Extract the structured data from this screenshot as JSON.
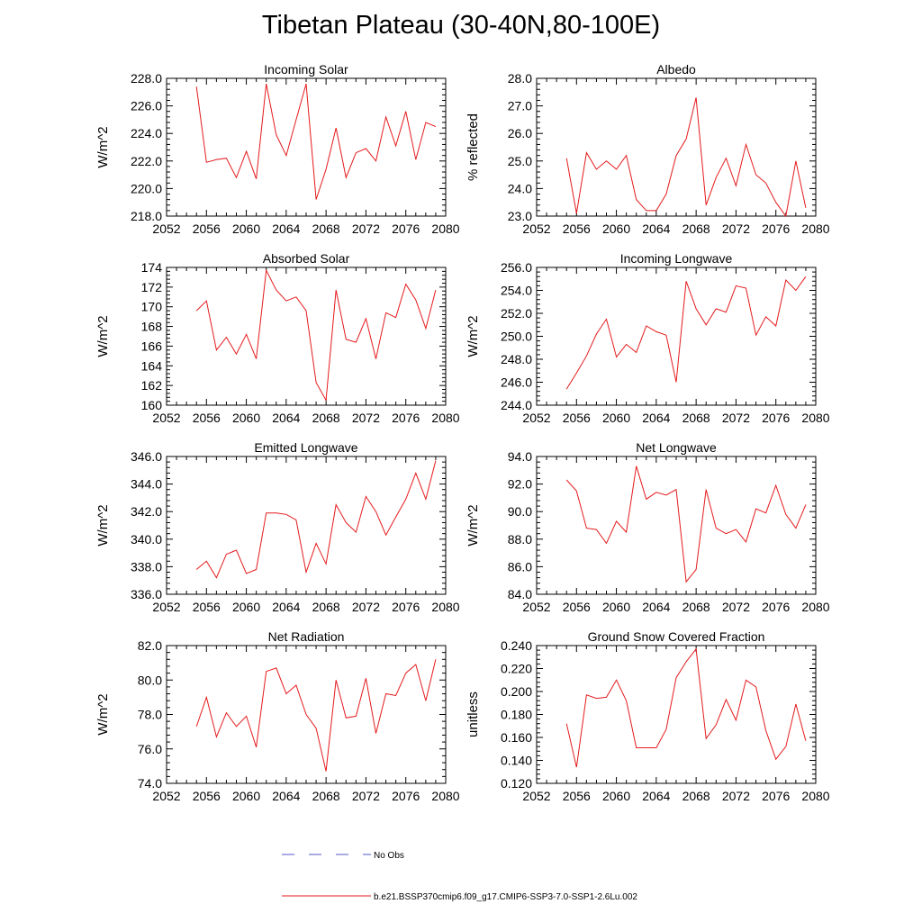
{
  "title": "Tibetan Plateau (30-40N,80-100E)",
  "legend": [
    {
      "label": "No Obs",
      "color": "#5555cc",
      "style": "dashed"
    },
    {
      "label": "b.e21.BSSP370cmip6.f09_g17.CMIP6-SSP3-7.0-SSP1-2.6Lu.002",
      "color": "#e41a1c",
      "style": "solid"
    }
  ],
  "chart_data": [
    {
      "type": "line",
      "title": "Incoming Solar",
      "ylabel": "W/m^2",
      "xlim": [
        2052,
        2080
      ],
      "ylim": [
        218.0,
        228.0
      ],
      "x_ticks": [
        2052,
        2056,
        2060,
        2064,
        2068,
        2072,
        2076,
        2080
      ],
      "y_ticks": [
        "218.0",
        "220.0",
        "222.0",
        "224.0",
        "226.0",
        "228.0"
      ],
      "series": [
        {
          "name": "b.e21.BSSP370cmip6.f09_g17.CMIP6-SSP3-7.0-SSP1-2.6Lu.002",
          "color": "#e41a1c",
          "x": [
            2055,
            2056,
            2057,
            2058,
            2059,
            2060,
            2061,
            2062,
            2063,
            2064,
            2065,
            2066,
            2067,
            2068,
            2069,
            2070,
            2071,
            2072,
            2073,
            2074,
            2075,
            2076,
            2077,
            2078,
            2079
          ],
          "y": [
            227.4,
            221.9,
            222.1,
            222.2,
            220.8,
            222.7,
            220.7,
            227.6,
            223.9,
            222.4,
            225.0,
            227.6,
            219.2,
            221.4,
            224.4,
            220.8,
            222.6,
            222.9,
            222.0,
            225.2,
            223.1,
            225.6,
            222.1,
            224.8,
            224.5
          ]
        }
      ]
    },
    {
      "type": "line",
      "title": "Albedo",
      "ylabel": "% reflected",
      "xlim": [
        2052,
        2080
      ],
      "ylim": [
        23.0,
        28.0
      ],
      "x_ticks": [
        2052,
        2056,
        2060,
        2064,
        2068,
        2072,
        2076,
        2080
      ],
      "y_ticks": [
        "23.0",
        "24.0",
        "25.0",
        "26.0",
        "27.0",
        "28.0"
      ],
      "series": [
        {
          "name": "b.e21.BSSP370cmip6.f09_g17.CMIP6-SSP3-7.0-SSP1-2.6Lu.002",
          "color": "#e41a1c",
          "x": [
            2055,
            2056,
            2057,
            2058,
            2059,
            2060,
            2061,
            2062,
            2063,
            2064,
            2065,
            2066,
            2067,
            2068,
            2069,
            2070,
            2071,
            2072,
            2073,
            2074,
            2075,
            2076,
            2077,
            2078,
            2079
          ],
          "y": [
            25.1,
            23.1,
            25.3,
            24.7,
            25.0,
            24.7,
            25.2,
            23.6,
            23.2,
            23.2,
            23.8,
            25.2,
            25.8,
            27.3,
            23.4,
            24.4,
            25.1,
            24.1,
            25.6,
            24.5,
            24.2,
            23.5,
            23.0,
            25.0,
            23.3
          ]
        }
      ]
    },
    {
      "type": "line",
      "title": "Absorbed Solar",
      "ylabel": "W/m^2",
      "xlim": [
        2052,
        2080
      ],
      "ylim": [
        160,
        174
      ],
      "x_ticks": [
        2052,
        2056,
        2060,
        2064,
        2068,
        2072,
        2076,
        2080
      ],
      "y_ticks": [
        "160",
        "162",
        "164",
        "166",
        "168",
        "170",
        "172",
        "174"
      ],
      "series": [
        {
          "name": "b.e21.BSSP370cmip6.f09_g17.CMIP6-SSP3-7.0-SSP1-2.6Lu.002",
          "color": "#e41a1c",
          "x": [
            2055,
            2056,
            2057,
            2058,
            2059,
            2060,
            2061,
            2062,
            2063,
            2064,
            2065,
            2066,
            2067,
            2068,
            2069,
            2070,
            2071,
            2072,
            2073,
            2074,
            2075,
            2076,
            2077,
            2078,
            2079
          ],
          "y": [
            169.6,
            170.6,
            165.6,
            166.9,
            165.2,
            167.2,
            164.7,
            173.7,
            171.7,
            170.6,
            171.0,
            169.6,
            162.3,
            160.5,
            171.7,
            166.7,
            166.4,
            168.8,
            164.7,
            169.4,
            168.9,
            172.3,
            170.7,
            167.8,
            171.7
          ]
        }
      ]
    },
    {
      "type": "line",
      "title": "Incoming Longwave",
      "ylabel": "W/m^2",
      "xlim": [
        2052,
        2080
      ],
      "ylim": [
        244.0,
        256.0
      ],
      "x_ticks": [
        2052,
        2056,
        2060,
        2064,
        2068,
        2072,
        2076,
        2080
      ],
      "y_ticks": [
        "244.0",
        "246.0",
        "248.0",
        "250.0",
        "252.0",
        "254.0",
        "256.0"
      ],
      "series": [
        {
          "name": "b.e21.BSSP370cmip6.f09_g17.CMIP6-SSP3-7.0-SSP1-2.6Lu.002",
          "color": "#e41a1c",
          "x": [
            2055,
            2056,
            2057,
            2058,
            2059,
            2060,
            2061,
            2062,
            2063,
            2064,
            2065,
            2066,
            2067,
            2068,
            2069,
            2070,
            2071,
            2072,
            2073,
            2074,
            2075,
            2076,
            2077,
            2078,
            2079
          ],
          "y": [
            245.4,
            246.8,
            248.3,
            250.2,
            251.5,
            248.2,
            249.3,
            248.6,
            250.9,
            250.4,
            250.1,
            246.0,
            254.8,
            252.4,
            251.0,
            252.4,
            252.1,
            254.4,
            254.2,
            250.1,
            251.7,
            250.9,
            254.9,
            254.0,
            255.2
          ]
        }
      ]
    },
    {
      "type": "line",
      "title": "Emitted Longwave",
      "ylabel": "W/m^2",
      "xlim": [
        2052,
        2080
      ],
      "ylim": [
        336.0,
        346.0
      ],
      "x_ticks": [
        2052,
        2056,
        2060,
        2064,
        2068,
        2072,
        2076,
        2080
      ],
      "y_ticks": [
        "336.0",
        "338.0",
        "340.0",
        "342.0",
        "344.0",
        "346.0"
      ],
      "series": [
        {
          "name": "b.e21.BSSP370cmip6.f09_g17.CMIP6-SSP3-7.0-SSP1-2.6Lu.002",
          "color": "#e41a1c",
          "x": [
            2055,
            2056,
            2057,
            2058,
            2059,
            2060,
            2061,
            2062,
            2063,
            2064,
            2065,
            2066,
            2067,
            2068,
            2069,
            2070,
            2071,
            2072,
            2073,
            2074,
            2075,
            2076,
            2077,
            2078,
            2079
          ],
          "y": [
            337.8,
            338.4,
            337.2,
            338.9,
            339.2,
            337.5,
            337.8,
            341.9,
            341.9,
            341.8,
            341.4,
            337.6,
            339.7,
            338.2,
            342.5,
            341.2,
            340.5,
            343.1,
            342.0,
            340.3,
            341.6,
            342.9,
            344.8,
            342.9,
            345.7
          ]
        }
      ]
    },
    {
      "type": "line",
      "title": "Net Longwave",
      "ylabel": "W/m^2",
      "xlim": [
        2052,
        2080
      ],
      "ylim": [
        84.0,
        94.0
      ],
      "x_ticks": [
        2052,
        2056,
        2060,
        2064,
        2068,
        2072,
        2076,
        2080
      ],
      "y_ticks": [
        "84.0",
        "86.0",
        "88.0",
        "90.0",
        "92.0",
        "94.0"
      ],
      "series": [
        {
          "name": "b.e21.BSSP370cmip6.f09_g17.CMIP6-SSP3-7.0-SSP1-2.6Lu.002",
          "color": "#e41a1c",
          "x": [
            2055,
            2056,
            2057,
            2058,
            2059,
            2060,
            2061,
            2062,
            2063,
            2064,
            2065,
            2066,
            2067,
            2068,
            2069,
            2070,
            2071,
            2072,
            2073,
            2074,
            2075,
            2076,
            2077,
            2078,
            2079
          ],
          "y": [
            92.3,
            91.5,
            88.8,
            88.7,
            87.7,
            89.3,
            88.5,
            93.3,
            90.9,
            91.4,
            91.2,
            91.6,
            84.9,
            85.8,
            91.6,
            88.8,
            88.4,
            88.7,
            87.8,
            90.2,
            89.9,
            91.9,
            89.8,
            88.8,
            90.5
          ]
        }
      ]
    },
    {
      "type": "line",
      "title": "Net Radiation",
      "ylabel": "W/m^2",
      "xlim": [
        2052,
        2080
      ],
      "ylim": [
        74.0,
        82.0
      ],
      "x_ticks": [
        2052,
        2056,
        2060,
        2064,
        2068,
        2072,
        2076,
        2080
      ],
      "y_ticks": [
        "74.0",
        "76.0",
        "78.0",
        "80.0",
        "82.0"
      ],
      "series": [
        {
          "name": "b.e21.BSSP370cmip6.f09_g17.CMIP6-SSP3-7.0-SSP1-2.6Lu.002",
          "color": "#e41a1c",
          "x": [
            2055,
            2056,
            2057,
            2058,
            2059,
            2060,
            2061,
            2062,
            2063,
            2064,
            2065,
            2066,
            2067,
            2068,
            2069,
            2070,
            2071,
            2072,
            2073,
            2074,
            2075,
            2076,
            2077,
            2078,
            2079
          ],
          "y": [
            77.3,
            79.0,
            76.7,
            78.1,
            77.3,
            77.9,
            76.1,
            80.5,
            80.7,
            79.2,
            79.7,
            78.0,
            77.2,
            74.7,
            80.0,
            77.8,
            77.9,
            80.1,
            76.9,
            79.2,
            79.1,
            80.4,
            80.9,
            78.8,
            81.2
          ]
        }
      ]
    },
    {
      "type": "line",
      "title": "Ground Snow Covered Fraction",
      "ylabel": "unitless",
      "xlim": [
        2052,
        2080
      ],
      "ylim": [
        0.12,
        0.24
      ],
      "x_ticks": [
        2052,
        2056,
        2060,
        2064,
        2068,
        2072,
        2076,
        2080
      ],
      "y_ticks": [
        "0.120",
        "0.140",
        "0.160",
        "0.180",
        "0.200",
        "0.220",
        "0.240"
      ],
      "series": [
        {
          "name": "b.e21.BSSP370cmip6.f09_g17.CMIP6-SSP3-7.0-SSP1-2.6Lu.002",
          "color": "#e41a1c",
          "x": [
            2055,
            2056,
            2057,
            2058,
            2059,
            2060,
            2061,
            2062,
            2063,
            2064,
            2065,
            2066,
            2067,
            2068,
            2069,
            2070,
            2071,
            2072,
            2073,
            2074,
            2075,
            2076,
            2077,
            2078,
            2079
          ],
          "y": [
            0.172,
            0.134,
            0.197,
            0.194,
            0.195,
            0.21,
            0.192,
            0.151,
            0.151,
            0.151,
            0.167,
            0.212,
            0.226,
            0.237,
            0.159,
            0.171,
            0.193,
            0.175,
            0.21,
            0.204,
            0.166,
            0.141,
            0.152,
            0.189,
            0.157
          ]
        }
      ]
    }
  ]
}
